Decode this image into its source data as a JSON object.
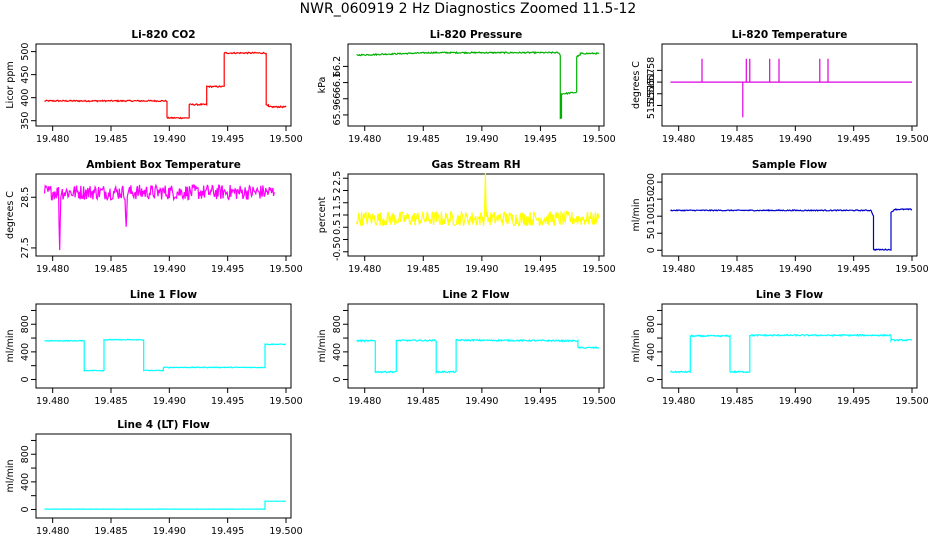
{
  "figure": {
    "title": "NWR_060919  2 Hz Diagnostics Zoomed 11.5-12"
  },
  "chart_data": [
    {
      "type": "line",
      "title": "Li-820 CO2",
      "xlabel": "",
      "ylabel": "Licor ppm",
      "color": "#ff0000",
      "xlim": [
        19.479,
        19.5
      ],
      "ylim": [
        345,
        510
      ],
      "xticks": [
        19.48,
        19.485,
        19.49,
        19.495,
        19.5
      ],
      "xticklabels": [
        "19.480",
        "19.485",
        "19.490",
        "19.495",
        "19.500"
      ],
      "yticks": [
        350,
        400,
        450,
        500
      ],
      "yticklabels": [
        "350",
        "400",
        "450",
        "500"
      ],
      "grid": false,
      "noise": 1.5,
      "x": [
        19.4793,
        19.4898,
        19.4898,
        19.4917,
        19.4917,
        19.4932,
        19.4932,
        19.4947,
        19.4947,
        19.4983,
        19.4983,
        19.4985,
        19.4985,
        19.5
      ],
      "y": [
        393,
        393,
        356,
        356,
        385,
        385,
        424,
        424,
        497,
        497,
        383,
        383,
        380,
        380
      ]
    },
    {
      "type": "line",
      "title": "Li-820 Pressure",
      "xlabel": "",
      "ylabel": "kPa",
      "color": "#00b000",
      "xlim": [
        19.479,
        19.5
      ],
      "ylim": [
        65.85,
        66.32
      ],
      "xticks": [
        19.48,
        19.485,
        19.49,
        19.495,
        19.5
      ],
      "xticklabels": [
        "19.480",
        "19.485",
        "19.490",
        "19.495",
        "19.500"
      ],
      "yticks": [
        65.9,
        66.0,
        66.1,
        66.2
      ],
      "yticklabels": [
        "65.9",
        "66",
        "66.1",
        "66.2"
      ],
      "grid": false,
      "noise": 0.004,
      "x": [
        19.4793,
        19.4857,
        19.4965,
        19.4967,
        19.4967,
        19.4968,
        19.4968,
        19.4981,
        19.4981,
        19.4984,
        19.4984,
        19.5
      ],
      "y": [
        66.27,
        66.285,
        66.285,
        66.27,
        65.88,
        65.88,
        66.03,
        66.04,
        66.26,
        66.27,
        66.28,
        66.28
      ]
    },
    {
      "type": "line",
      "title": "Li-820 Temperature",
      "xlabel": "",
      "ylabel": "degrees C",
      "color": "#e000e0",
      "xlim": [
        19.479,
        19.5
      ],
      "ylim": [
        51.535,
        51.6
      ],
      "xticks": [
        19.48,
        19.485,
        19.49,
        19.495,
        19.5
      ],
      "xticklabels": [
        "19.480",
        "19.485",
        "19.490",
        "19.495",
        "19.500"
      ],
      "yticks": [
        51.55,
        51.56,
        51.57,
        51.58
      ],
      "yticklabels": [
        "51.55",
        "51.56",
        "51.57",
        "51.58"
      ],
      "grid": false,
      "noise": 0,
      "x": [
        19.4793,
        19.482,
        19.482,
        19.482,
        19.4855,
        19.4855,
        19.4855,
        19.4858,
        19.4858,
        19.4858,
        19.4861,
        19.4861,
        19.4861,
        19.4878,
        19.4878,
        19.4878,
        19.4886,
        19.4886,
        19.4886,
        19.4921,
        19.4921,
        19.4921,
        19.4928,
        19.4928,
        19.4928,
        19.5
      ],
      "y": [
        51.57,
        51.57,
        51.59,
        51.57,
        51.57,
        51.54,
        51.57,
        51.57,
        51.59,
        51.57,
        51.57,
        51.59,
        51.57,
        51.57,
        51.59,
        51.57,
        51.57,
        51.59,
        51.57,
        51.57,
        51.59,
        51.57,
        51.57,
        51.59,
        51.57,
        51.57
      ]
    },
    {
      "type": "line",
      "title": "Ambient Box Temperature",
      "xlabel": "",
      "ylabel": "degrees C",
      "color": "#ff00ff",
      "xlim": [
        19.479,
        19.5
      ],
      "ylim": [
        27.4,
        28.9
      ],
      "xticks": [
        19.48,
        19.485,
        19.49,
        19.495,
        19.5
      ],
      "xticklabels": [
        "19.480",
        "19.485",
        "19.490",
        "19.495",
        "19.500"
      ],
      "yticks": [
        27.5,
        28.5
      ],
      "yticklabels": [
        "27.5",
        "28.5"
      ],
      "grid": false,
      "noise": 0.15,
      "x": [
        19.4793,
        19.4805,
        19.4806,
        19.4807,
        19.4862,
        19.4863,
        19.4864,
        19.499
      ],
      "y": [
        28.6,
        28.6,
        27.45,
        28.6,
        28.6,
        27.8,
        28.6,
        28.6
      ]
    },
    {
      "type": "line",
      "title": "Gas Stream RH",
      "xlabel": "",
      "ylabel": "percent",
      "color": "#ffff00",
      "xlim": [
        19.479,
        19.5
      ],
      "ylim": [
        -0.55,
        2.55
      ],
      "xticks": [
        19.48,
        19.485,
        19.49,
        19.495,
        19.5
      ],
      "xticklabels": [
        "19.480",
        "19.485",
        "19.490",
        "19.495",
        "19.500"
      ],
      "yticks": [
        -0.5,
        0.5,
        1.5,
        2.5
      ],
      "yticklabels": [
        "-0.5",
        "0.5",
        "1.5",
        "2.5"
      ],
      "yticks_minor": [
        0,
        1,
        2
      ],
      "yticklabels_minor": [
        "0",
        "1",
        "2"
      ],
      "grid": false,
      "noise": 0.3,
      "x": [
        19.4793,
        19.4902,
        19.4903,
        19.4904,
        19.5
      ],
      "y": [
        0.85,
        0.85,
        2.5,
        0.85,
        0.85
      ]
    },
    {
      "type": "line",
      "title": "Sample Flow",
      "xlabel": "",
      "ylabel": "ml/min",
      "color": "#0000cc",
      "xlim": [
        19.479,
        19.5
      ],
      "ylim": [
        -8,
        215
      ],
      "xticks": [
        19.48,
        19.485,
        19.49,
        19.495,
        19.5
      ],
      "xticklabels": [
        "19.480",
        "19.485",
        "19.490",
        "19.495",
        "19.500"
      ],
      "yticks": [
        0,
        50,
        100,
        150,
        200
      ],
      "yticklabels": [
        "0",
        "50",
        "100",
        "150",
        "200"
      ],
      "grid": false,
      "noise": 1.5,
      "x": [
        19.4793,
        19.4965,
        19.4967,
        19.4967,
        19.4982,
        19.4982,
        19.4985,
        19.5
      ],
      "y": [
        117,
        117,
        100,
        2,
        2,
        110,
        120,
        120
      ]
    },
    {
      "type": "line",
      "title": "Line 1 Flow",
      "xlabel": "",
      "ylabel": "ml/min",
      "color": "#00ffff",
      "xlim": [
        19.479,
        19.5
      ],
      "ylim": [
        -80,
        1050
      ],
      "xticks": [
        19.48,
        19.485,
        19.49,
        19.495,
        19.5
      ],
      "xticklabels": [
        "19.480",
        "19.485",
        "19.490",
        "19.495",
        "19.500"
      ],
      "yticks": [
        0,
        400,
        800
      ],
      "yticklabels": [
        "0",
        "400",
        "800"
      ],
      "yticks_minor": [
        200,
        600,
        1000
      ],
      "grid": false,
      "noise": 6,
      "x": [
        19.4793,
        19.4827,
        19.4827,
        19.4844,
        19.4844,
        19.4878,
        19.4878,
        19.4895,
        19.4895,
        19.4982,
        19.4982,
        19.5
      ],
      "y": [
        560,
        560,
        130,
        130,
        575,
        575,
        130,
        130,
        175,
        175,
        510,
        510
      ]
    },
    {
      "type": "line",
      "title": "Line 2 Flow",
      "xlabel": "",
      "ylabel": "ml/min",
      "color": "#00ffff",
      "xlim": [
        19.479,
        19.5
      ],
      "ylim": [
        -80,
        1050
      ],
      "xticks": [
        19.48,
        19.485,
        19.49,
        19.495,
        19.5
      ],
      "xticklabels": [
        "19.480",
        "19.485",
        "19.490",
        "19.495",
        "19.500"
      ],
      "yticks": [
        0,
        400,
        800
      ],
      "yticklabels": [
        "0",
        "400",
        "800"
      ],
      "yticks_minor": [
        200,
        600,
        1000
      ],
      "grid": false,
      "noise": 10,
      "x": [
        19.4793,
        19.4809,
        19.4809,
        19.4827,
        19.4827,
        19.4861,
        19.4861,
        19.4878,
        19.4878,
        19.4982,
        19.4982,
        19.5
      ],
      "y": [
        560,
        560,
        110,
        110,
        565,
        565,
        110,
        110,
        570,
        560,
        460,
        460
      ]
    },
    {
      "type": "line",
      "title": "Line 3 Flow",
      "xlabel": "",
      "ylabel": "ml/min",
      "color": "#00ffff",
      "xlim": [
        19.479,
        19.5
      ],
      "ylim": [
        -80,
        1050
      ],
      "xticks": [
        19.48,
        19.485,
        19.49,
        19.495,
        19.5
      ],
      "xticklabels": [
        "19.480",
        "19.485",
        "19.490",
        "19.495",
        "19.500"
      ],
      "yticks": [
        0,
        400,
        800
      ],
      "yticklabels": [
        "0",
        "400",
        "800"
      ],
      "yticks_minor": [
        200,
        600,
        1000
      ],
      "grid": false,
      "noise": 10,
      "x": [
        19.4793,
        19.481,
        19.481,
        19.4844,
        19.4844,
        19.4861,
        19.4861,
        19.4982,
        19.4982,
        19.5
      ],
      "y": [
        110,
        110,
        630,
        630,
        110,
        110,
        640,
        640,
        570,
        570
      ]
    },
    {
      "type": "line",
      "title": "Line 4 (LT) Flow",
      "xlabel": "",
      "ylabel": "ml/min",
      "color": "#00ffff",
      "xlim": [
        19.479,
        19.5
      ],
      "ylim": [
        -80,
        1050
      ],
      "xticks": [
        19.48,
        19.485,
        19.49,
        19.495,
        19.5
      ],
      "xticklabels": [
        "19.480",
        "19.485",
        "19.490",
        "19.495",
        "19.500"
      ],
      "yticks": [
        0,
        400,
        800
      ],
      "yticklabels": [
        "0",
        "400",
        "800"
      ],
      "yticks_minor": [
        200,
        600,
        1000
      ],
      "grid": false,
      "noise": 2,
      "x": [
        19.4793,
        19.4982,
        19.4982,
        19.5
      ],
      "y": [
        5,
        5,
        120,
        120
      ]
    }
  ]
}
